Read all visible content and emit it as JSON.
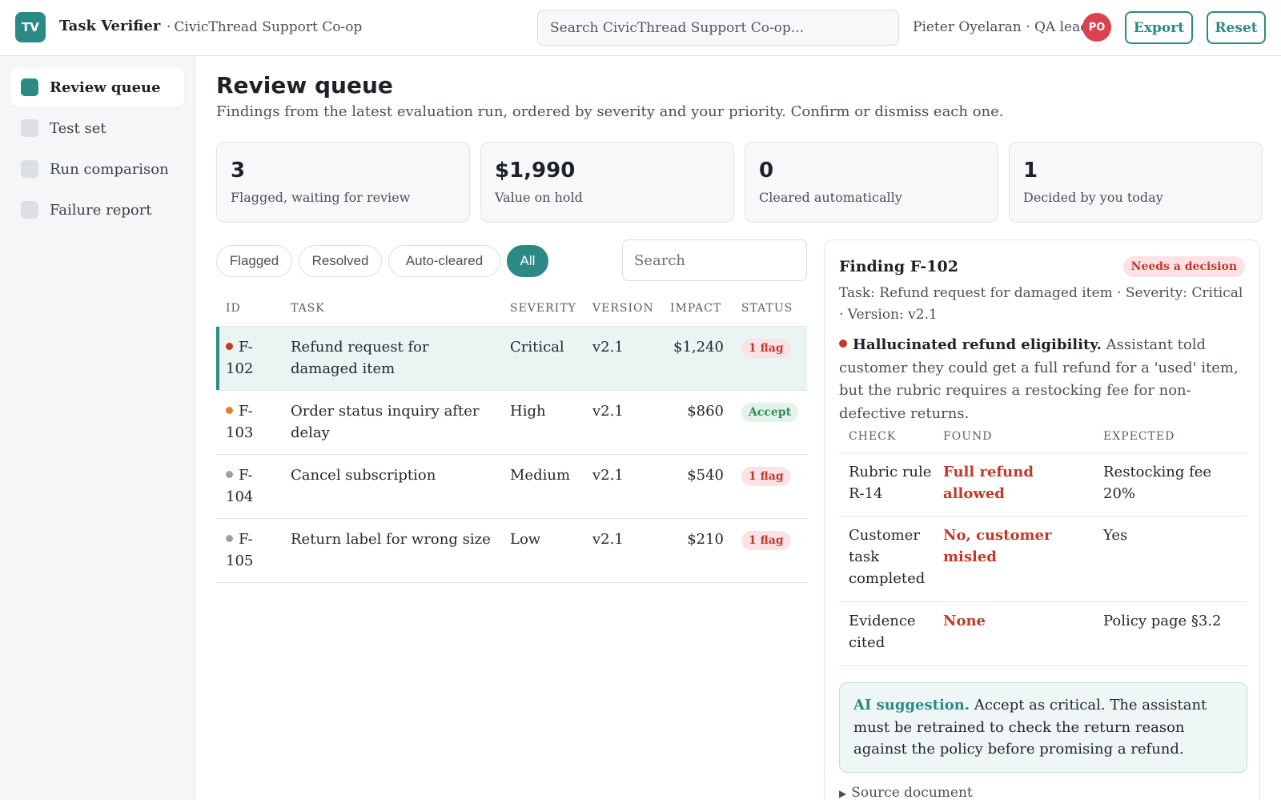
{
  "header": {
    "logo_initials": "TV",
    "app_name": "Task Verifier",
    "org_separator": "·",
    "org_name": "CivicThread Support Co-op",
    "search_placeholder": "Search CivicThread Support Co-op...",
    "user_label": "Pieter Oyelaran · QA lead",
    "avatar_initials": "PO",
    "export_label": "Export",
    "reset_label": "Reset"
  },
  "sidebar": {
    "items": [
      {
        "label": "Review queue",
        "active": true
      },
      {
        "label": "Test set",
        "active": false
      },
      {
        "label": "Run comparison",
        "active": false
      },
      {
        "label": "Failure report",
        "active": false
      }
    ]
  },
  "main": {
    "title": "Review queue",
    "subtitle": "Findings from the latest evaluation run, ordered by severity and your priority. Confirm or dismiss each one.",
    "stats": [
      {
        "value": "3",
        "label": "Flagged, waiting for review"
      },
      {
        "value": "$1,990",
        "label": "Value on hold"
      },
      {
        "value": "0",
        "label": "Cleared automatically"
      },
      {
        "value": "1",
        "label": "Decided by you today"
      }
    ],
    "filters": [
      {
        "label": "Flagged",
        "active": false
      },
      {
        "label": "Resolved",
        "active": false
      },
      {
        "label": "Auto-cleared",
        "active": false
      },
      {
        "label": "All",
        "active": true
      }
    ],
    "table_search_placeholder": "Search",
    "columns": [
      "ID",
      "TASK",
      "SEVERITY",
      "VERSION",
      "IMPACT",
      "STATUS"
    ],
    "rows": [
      {
        "id_line1": "F-",
        "id_line2": "102",
        "task": "Refund request for damaged item",
        "severity": "Critical",
        "version": "v2.1",
        "impact": "$1,240",
        "status": "1 flag",
        "status_type": "flag",
        "dot_color": "#c0392b",
        "selected": true
      },
      {
        "id_line1": "F-",
        "id_line2": "103",
        "task": "Order status inquiry after delay",
        "severity": "High",
        "version": "v2.1",
        "impact": "$860",
        "status": "Accept",
        "status_type": "accept",
        "dot_color": "#d9822b",
        "selected": false
      },
      {
        "id_line1": "F-",
        "id_line2": "104",
        "task": "Cancel subscription",
        "severity": "Medium",
        "version": "v2.1",
        "impact": "$540",
        "status": "1 flag",
        "status_type": "flag",
        "dot_color": "#9aa0a8",
        "selected": false
      },
      {
        "id_line1": "F-",
        "id_line2": "105",
        "task": "Return label for wrong size",
        "severity": "Low",
        "version": "v2.1",
        "impact": "$210",
        "status": "1 flag",
        "status_type": "flag",
        "dot_color": "#9aa0a8",
        "selected": false
      }
    ]
  },
  "detail": {
    "title": "Finding F-102",
    "badge": "Needs a decision",
    "meta": "Task: Refund request for damaged item · Severity: Critical · Version: v2.1",
    "finding_title": "Hallucinated refund eligibility.",
    "finding_body": "Assistant told customer they could get a full refund for a 'used' item, but the rubric requires a restocking fee for non-defective returns.",
    "columns": [
      "CHECK",
      "FOUND",
      "EXPECTED"
    ],
    "checks": [
      {
        "check": "Rubric rule R-14",
        "found": "Full refund allowed",
        "expected": "Restocking fee 20%"
      },
      {
        "check": "Customer task completed",
        "found": "No, customer misled",
        "expected": "Yes"
      },
      {
        "check": "Evidence cited",
        "found": "None",
        "expected": "Policy page §3.2"
      }
    ],
    "suggestion_label": "AI suggestion.",
    "suggestion_text": "Accept as critical. The assistant must be retrained to check the return reason against the policy before promising a refund.",
    "source_label": "Source document"
  },
  "colors": {
    "accent": "#2b8a85",
    "critical": "#c0392b",
    "high": "#d9822b",
    "neutral": "#9aa0a8"
  }
}
